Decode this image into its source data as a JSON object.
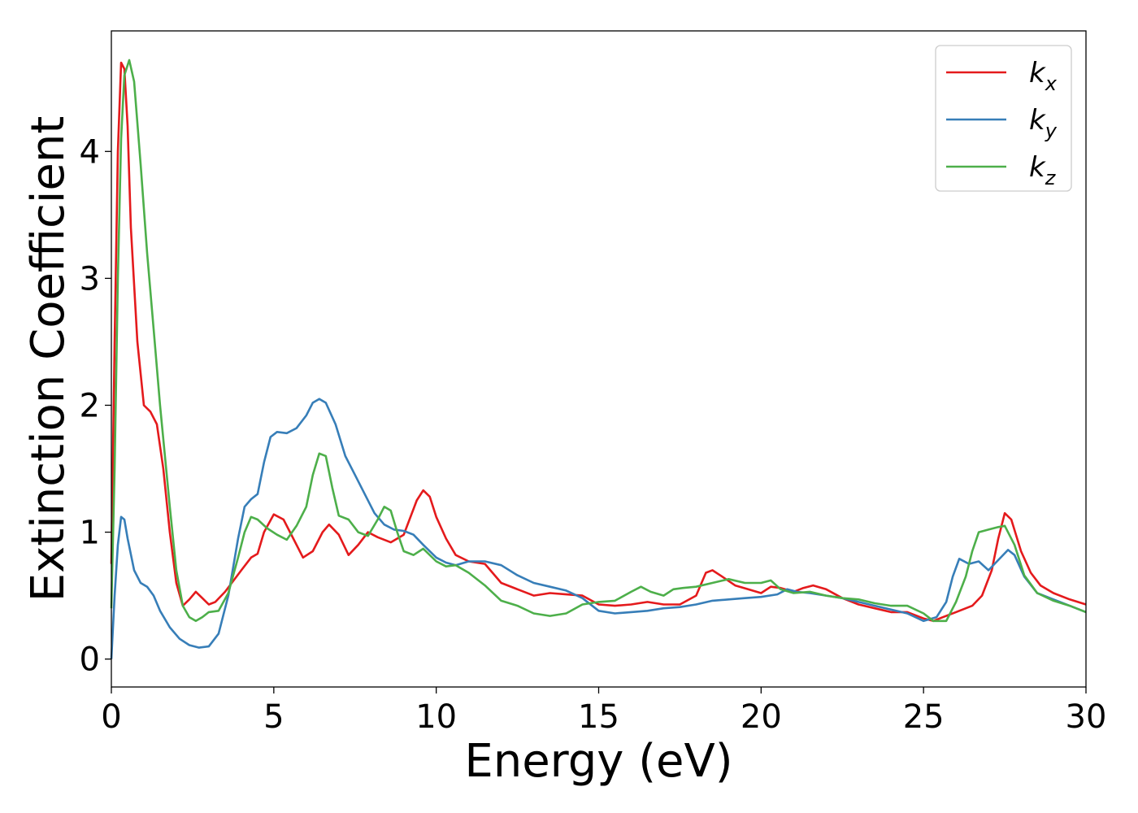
{
  "chart_data": {
    "type": "line",
    "xlabel": "Energy (eV)",
    "ylabel": "Extinction Coefficient",
    "xlim": [
      0,
      30
    ],
    "ylim": [
      -0.22,
      4.95
    ],
    "xticks": [
      0,
      5,
      10,
      15,
      20,
      25,
      30
    ],
    "yticks": [
      0,
      1,
      2,
      3,
      4
    ],
    "grid": false,
    "legend_position": "top-right",
    "series": [
      {
        "name": "k",
        "sub": "x",
        "color": "#e41a1c",
        "points": [
          [
            0,
            0.75
          ],
          [
            0.1,
            2.5
          ],
          [
            0.2,
            4.0
          ],
          [
            0.3,
            4.7
          ],
          [
            0.4,
            4.65
          ],
          [
            0.5,
            4.2
          ],
          [
            0.6,
            3.4
          ],
          [
            0.8,
            2.5
          ],
          [
            1.0,
            2.0
          ],
          [
            1.2,
            1.95
          ],
          [
            1.4,
            1.85
          ],
          [
            1.6,
            1.5
          ],
          [
            1.8,
            1.0
          ],
          [
            2.0,
            0.6
          ],
          [
            2.2,
            0.42
          ],
          [
            2.4,
            0.47
          ],
          [
            2.6,
            0.53
          ],
          [
            2.8,
            0.48
          ],
          [
            3.0,
            0.43
          ],
          [
            3.2,
            0.45
          ],
          [
            3.5,
            0.53
          ],
          [
            4.0,
            0.7
          ],
          [
            4.3,
            0.8
          ],
          [
            4.5,
            0.83
          ],
          [
            4.7,
            1.0
          ],
          [
            5.0,
            1.14
          ],
          [
            5.3,
            1.1
          ],
          [
            5.6,
            0.95
          ],
          [
            5.9,
            0.8
          ],
          [
            6.2,
            0.85
          ],
          [
            6.5,
            1.0
          ],
          [
            6.7,
            1.06
          ],
          [
            7.0,
            0.98
          ],
          [
            7.3,
            0.82
          ],
          [
            7.6,
            0.9
          ],
          [
            7.9,
            1.0
          ],
          [
            8.2,
            0.96
          ],
          [
            8.6,
            0.92
          ],
          [
            9.0,
            0.98
          ],
          [
            9.4,
            1.25
          ],
          [
            9.6,
            1.33
          ],
          [
            9.8,
            1.28
          ],
          [
            10.0,
            1.12
          ],
          [
            10.3,
            0.95
          ],
          [
            10.6,
            0.82
          ],
          [
            11.0,
            0.77
          ],
          [
            11.5,
            0.75
          ],
          [
            12.0,
            0.6
          ],
          [
            12.5,
            0.55
          ],
          [
            13.0,
            0.5
          ],
          [
            13.5,
            0.52
          ],
          [
            14.0,
            0.51
          ],
          [
            14.5,
            0.5
          ],
          [
            15.0,
            0.43
          ],
          [
            15.5,
            0.42
          ],
          [
            16.0,
            0.43
          ],
          [
            16.5,
            0.45
          ],
          [
            17.0,
            0.43
          ],
          [
            17.5,
            0.43
          ],
          [
            18.0,
            0.5
          ],
          [
            18.3,
            0.68
          ],
          [
            18.5,
            0.7
          ],
          [
            18.8,
            0.65
          ],
          [
            19.2,
            0.58
          ],
          [
            19.6,
            0.55
          ],
          [
            20.0,
            0.52
          ],
          [
            20.3,
            0.57
          ],
          [
            20.6,
            0.56
          ],
          [
            21.0,
            0.53
          ],
          [
            21.3,
            0.56
          ],
          [
            21.6,
            0.58
          ],
          [
            22.0,
            0.55
          ],
          [
            22.5,
            0.48
          ],
          [
            23.0,
            0.43
          ],
          [
            23.5,
            0.4
          ],
          [
            24.0,
            0.37
          ],
          [
            24.5,
            0.37
          ],
          [
            25.0,
            0.32
          ],
          [
            25.3,
            0.3
          ],
          [
            25.6,
            0.33
          ],
          [
            26.0,
            0.37
          ],
          [
            26.5,
            0.42
          ],
          [
            26.8,
            0.5
          ],
          [
            27.1,
            0.7
          ],
          [
            27.3,
            0.95
          ],
          [
            27.5,
            1.15
          ],
          [
            27.7,
            1.1
          ],
          [
            28.0,
            0.85
          ],
          [
            28.3,
            0.68
          ],
          [
            28.6,
            0.58
          ],
          [
            29.0,
            0.52
          ],
          [
            29.5,
            0.47
          ],
          [
            30.0,
            0.43
          ]
        ]
      },
      {
        "name": "k",
        "sub": "y",
        "color": "#377eb8",
        "points": [
          [
            0,
            0.0
          ],
          [
            0.1,
            0.5
          ],
          [
            0.2,
            0.9
          ],
          [
            0.3,
            1.12
          ],
          [
            0.4,
            1.1
          ],
          [
            0.5,
            0.95
          ],
          [
            0.7,
            0.7
          ],
          [
            0.9,
            0.6
          ],
          [
            1.1,
            0.57
          ],
          [
            1.3,
            0.5
          ],
          [
            1.5,
            0.38
          ],
          [
            1.8,
            0.25
          ],
          [
            2.1,
            0.16
          ],
          [
            2.4,
            0.11
          ],
          [
            2.7,
            0.09
          ],
          [
            3.0,
            0.1
          ],
          [
            3.3,
            0.2
          ],
          [
            3.6,
            0.5
          ],
          [
            3.9,
            0.95
          ],
          [
            4.1,
            1.2
          ],
          [
            4.3,
            1.26
          ],
          [
            4.5,
            1.3
          ],
          [
            4.7,
            1.55
          ],
          [
            4.9,
            1.75
          ],
          [
            5.1,
            1.79
          ],
          [
            5.4,
            1.78
          ],
          [
            5.7,
            1.82
          ],
          [
            6.0,
            1.92
          ],
          [
            6.2,
            2.02
          ],
          [
            6.4,
            2.05
          ],
          [
            6.6,
            2.02
          ],
          [
            6.9,
            1.85
          ],
          [
            7.2,
            1.6
          ],
          [
            7.5,
            1.45
          ],
          [
            7.8,
            1.3
          ],
          [
            8.1,
            1.15
          ],
          [
            8.4,
            1.06
          ],
          [
            8.7,
            1.02
          ],
          [
            9.0,
            1.01
          ],
          [
            9.3,
            0.98
          ],
          [
            9.6,
            0.9
          ],
          [
            10.0,
            0.8
          ],
          [
            10.3,
            0.76
          ],
          [
            10.6,
            0.74
          ],
          [
            11.0,
            0.77
          ],
          [
            11.5,
            0.77
          ],
          [
            12.0,
            0.74
          ],
          [
            12.5,
            0.66
          ],
          [
            13.0,
            0.6
          ],
          [
            13.5,
            0.57
          ],
          [
            14.0,
            0.54
          ],
          [
            14.5,
            0.48
          ],
          [
            15.0,
            0.38
          ],
          [
            15.5,
            0.36
          ],
          [
            16.0,
            0.37
          ],
          [
            16.5,
            0.38
          ],
          [
            17.0,
            0.4
          ],
          [
            17.5,
            0.41
          ],
          [
            18.0,
            0.43
          ],
          [
            18.5,
            0.46
          ],
          [
            19.0,
            0.47
          ],
          [
            19.5,
            0.48
          ],
          [
            20.0,
            0.49
          ],
          [
            20.5,
            0.51
          ],
          [
            20.8,
            0.55
          ],
          [
            21.1,
            0.53
          ],
          [
            21.5,
            0.52
          ],
          [
            22.0,
            0.5
          ],
          [
            22.5,
            0.48
          ],
          [
            23.0,
            0.45
          ],
          [
            23.5,
            0.42
          ],
          [
            24.0,
            0.39
          ],
          [
            24.5,
            0.36
          ],
          [
            25.0,
            0.3
          ],
          [
            25.4,
            0.33
          ],
          [
            25.7,
            0.45
          ],
          [
            25.9,
            0.65
          ],
          [
            26.1,
            0.79
          ],
          [
            26.4,
            0.75
          ],
          [
            26.7,
            0.77
          ],
          [
            27.0,
            0.7
          ],
          [
            27.3,
            0.78
          ],
          [
            27.6,
            0.86
          ],
          [
            27.8,
            0.82
          ],
          [
            28.1,
            0.65
          ],
          [
            28.5,
            0.52
          ],
          [
            29.0,
            0.47
          ],
          [
            29.5,
            0.42
          ],
          [
            30.0,
            0.37
          ]
        ]
      },
      {
        "name": "k",
        "sub": "z",
        "color": "#4daf4a",
        "points": [
          [
            0,
            0.4
          ],
          [
            0.1,
            1.5
          ],
          [
            0.2,
            3.0
          ],
          [
            0.3,
            4.1
          ],
          [
            0.4,
            4.6
          ],
          [
            0.55,
            4.72
          ],
          [
            0.7,
            4.55
          ],
          [
            0.9,
            3.9
          ],
          [
            1.1,
            3.2
          ],
          [
            1.3,
            2.6
          ],
          [
            1.5,
            2.0
          ],
          [
            1.8,
            1.2
          ],
          [
            2.0,
            0.7
          ],
          [
            2.2,
            0.42
          ],
          [
            2.4,
            0.33
          ],
          [
            2.6,
            0.3
          ],
          [
            2.8,
            0.33
          ],
          [
            3.0,
            0.37
          ],
          [
            3.3,
            0.38
          ],
          [
            3.6,
            0.52
          ],
          [
            3.9,
            0.8
          ],
          [
            4.1,
            1.0
          ],
          [
            4.3,
            1.12
          ],
          [
            4.5,
            1.1
          ],
          [
            4.8,
            1.03
          ],
          [
            5.1,
            0.98
          ],
          [
            5.4,
            0.94
          ],
          [
            5.7,
            1.05
          ],
          [
            6.0,
            1.2
          ],
          [
            6.2,
            1.45
          ],
          [
            6.4,
            1.62
          ],
          [
            6.6,
            1.6
          ],
          [
            6.8,
            1.35
          ],
          [
            7.0,
            1.13
          ],
          [
            7.3,
            1.1
          ],
          [
            7.6,
            1.0
          ],
          [
            7.9,
            0.97
          ],
          [
            8.2,
            1.1
          ],
          [
            8.4,
            1.2
          ],
          [
            8.6,
            1.17
          ],
          [
            8.8,
            1.0
          ],
          [
            9.0,
            0.85
          ],
          [
            9.3,
            0.82
          ],
          [
            9.6,
            0.87
          ],
          [
            10.0,
            0.77
          ],
          [
            10.3,
            0.73
          ],
          [
            10.6,
            0.74
          ],
          [
            11.0,
            0.68
          ],
          [
            11.5,
            0.58
          ],
          [
            12.0,
            0.46
          ],
          [
            12.5,
            0.42
          ],
          [
            13.0,
            0.36
          ],
          [
            13.5,
            0.34
          ],
          [
            14.0,
            0.36
          ],
          [
            14.5,
            0.43
          ],
          [
            15.0,
            0.45
          ],
          [
            15.5,
            0.46
          ],
          [
            16.0,
            0.53
          ],
          [
            16.3,
            0.57
          ],
          [
            16.6,
            0.53
          ],
          [
            17.0,
            0.5
          ],
          [
            17.3,
            0.55
          ],
          [
            17.6,
            0.56
          ],
          [
            18.0,
            0.57
          ],
          [
            18.5,
            0.6
          ],
          [
            19.0,
            0.63
          ],
          [
            19.5,
            0.6
          ],
          [
            20.0,
            0.6
          ],
          [
            20.3,
            0.62
          ],
          [
            20.6,
            0.55
          ],
          [
            21.0,
            0.52
          ],
          [
            21.5,
            0.53
          ],
          [
            22.0,
            0.5
          ],
          [
            22.5,
            0.48
          ],
          [
            23.0,
            0.47
          ],
          [
            23.5,
            0.44
          ],
          [
            24.0,
            0.42
          ],
          [
            24.5,
            0.42
          ],
          [
            25.0,
            0.36
          ],
          [
            25.3,
            0.3
          ],
          [
            25.7,
            0.3
          ],
          [
            26.0,
            0.45
          ],
          [
            26.3,
            0.65
          ],
          [
            26.5,
            0.85
          ],
          [
            26.7,
            1.0
          ],
          [
            27.0,
            1.02
          ],
          [
            27.3,
            1.04
          ],
          [
            27.5,
            1.05
          ],
          [
            27.8,
            0.9
          ],
          [
            28.1,
            0.66
          ],
          [
            28.5,
            0.52
          ],
          [
            29.0,
            0.46
          ],
          [
            29.5,
            0.42
          ],
          [
            30.0,
            0.37
          ]
        ]
      }
    ]
  }
}
